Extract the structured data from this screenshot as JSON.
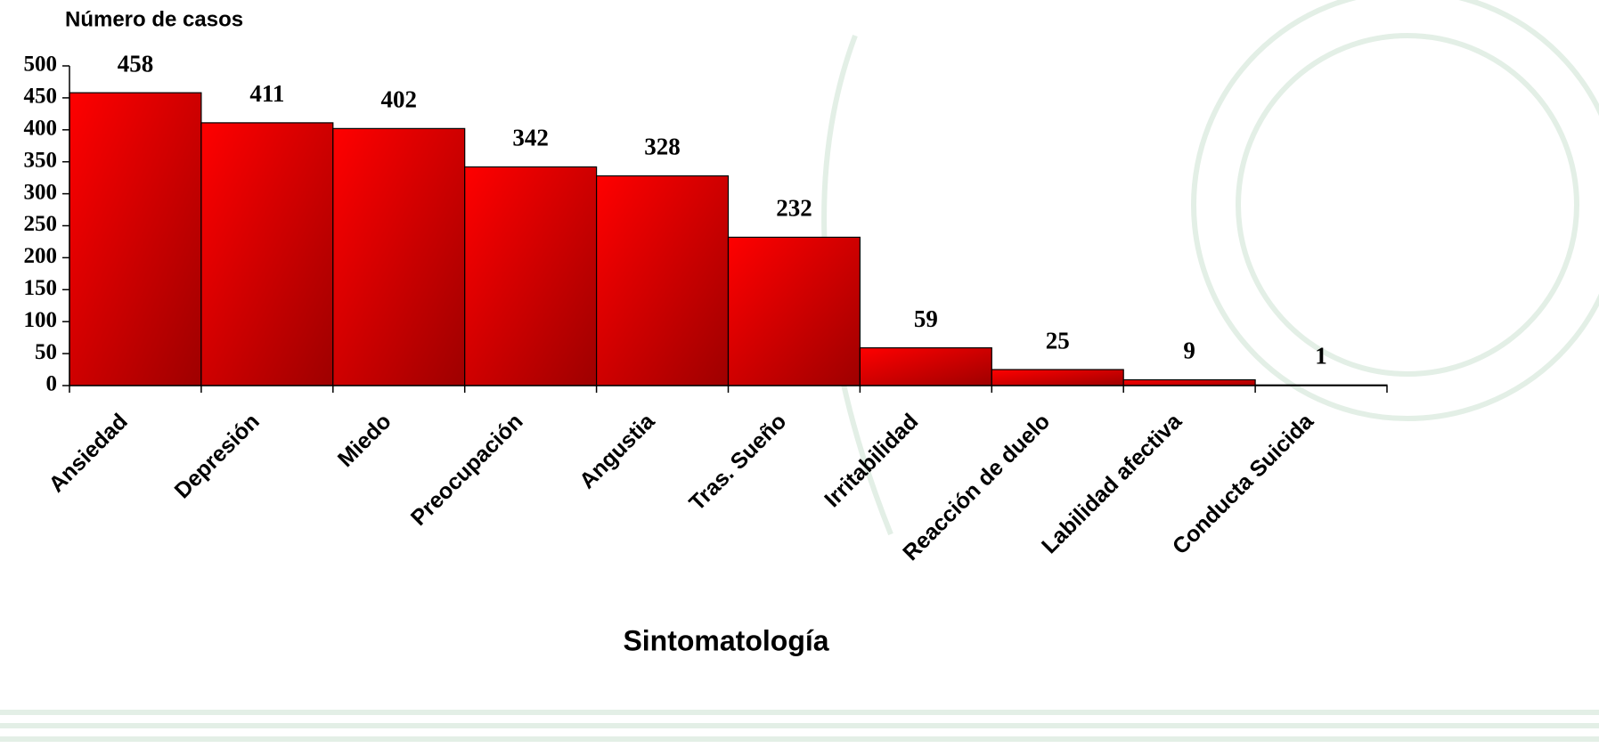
{
  "chart_data": {
    "type": "bar",
    "y_axis_label": "Número de casos",
    "x_axis_label": "Sintomatología",
    "categories": [
      "Ansiedad",
      "Depresión",
      "Miedo",
      "Preocupación",
      "Angustia",
      "Tras. Sueño",
      "Irritabilidad",
      "Reacción de duelo",
      "Labilidad afectiva",
      "Conducta Suicida"
    ],
    "values": [
      458,
      411,
      402,
      342,
      328,
      232,
      59,
      25,
      9,
      1
    ],
    "color": "#ff0000",
    "ylim": [
      0,
      500
    ],
    "yticks": [
      0,
      50,
      100,
      150,
      200,
      250,
      300,
      350,
      400,
      450,
      500
    ],
    "grid": false
  }
}
